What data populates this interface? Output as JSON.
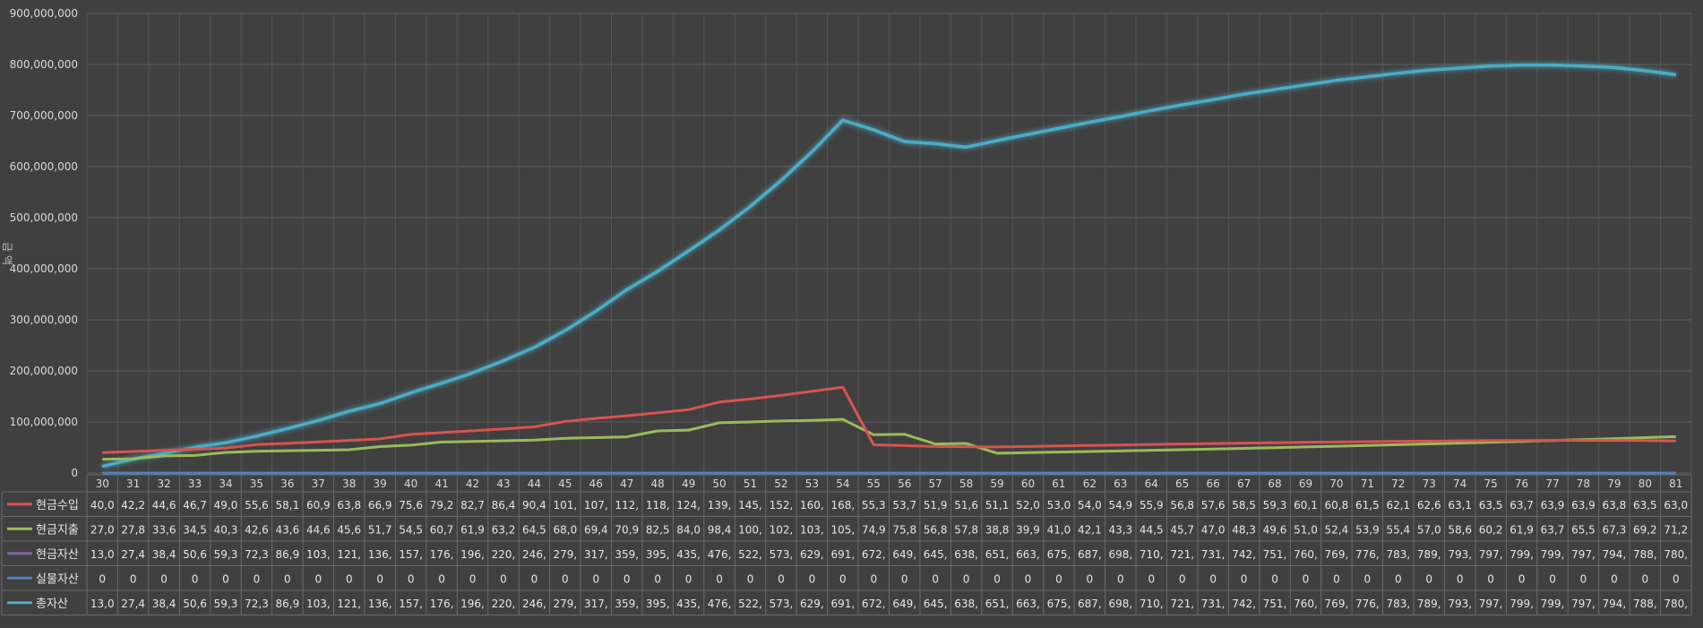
{
  "chart_data": {
    "type": "line",
    "title": "",
    "ylabel": "금 액",
    "ylim": [
      0,
      900000000
    ],
    "y_ticks": [
      "0",
      "100,000,000",
      "200,000,000",
      "300,000,000",
      "400,000,000",
      "500,000,000",
      "600,000,000",
      "700,000,000",
      "800,000,000",
      "900,000,000"
    ],
    "grid": true,
    "legend": "data table below chart",
    "categories": [
      "30",
      "31",
      "32",
      "33",
      "34",
      "35",
      "36",
      "37",
      "38",
      "39",
      "40",
      "41",
      "42",
      "43",
      "44",
      "45",
      "46",
      "47",
      "48",
      "49",
      "50",
      "51",
      "52",
      "53",
      "54",
      "55",
      "56",
      "57",
      "58",
      "59",
      "60",
      "61",
      "62",
      "63",
      "64",
      "65",
      "66",
      "67",
      "68",
      "69",
      "70",
      "71",
      "72",
      "73",
      "74",
      "75",
      "76",
      "77",
      "78",
      "79",
      "80",
      "81"
    ],
    "series": [
      {
        "name": "현금수입",
        "color": "#d9534f",
        "values": [
          40000000,
          42200000,
          44600000,
          46700000,
          49000000,
          55600000,
          58100000,
          60900000,
          63800000,
          66900000,
          75600000,
          79200000,
          82700000,
          86400000,
          90400000,
          101000000,
          107000000,
          112000000,
          118000000,
          124000000,
          139000000,
          145000000,
          152000000,
          160000000,
          168000000,
          55300000,
          53700000,
          51900000,
          51600000,
          51100000,
          52000000,
          53000000,
          54000000,
          54900000,
          55900000,
          56800000,
          57600000,
          58500000,
          59300000,
          60100000,
          60800000,
          61500000,
          62100000,
          62600000,
          63100000,
          63500000,
          63700000,
          63900000,
          63900000,
          63800000,
          63500000,
          63000000
        ],
        "labels": [
          "40,0",
          "42,2",
          "44,6",
          "46,7",
          "49,0",
          "55,6",
          "58,1",
          "60,9",
          "63,8",
          "66,9",
          "75,6",
          "79,2",
          "82,7",
          "86,4",
          "90,4",
          "101,",
          "107,",
          "112,",
          "118,",
          "124,",
          "139,",
          "145,",
          "152,",
          "160,",
          "168,",
          "55,3",
          "53,7",
          "51,9",
          "51,6",
          "51,1",
          "52,0",
          "53,0",
          "54,0",
          "54,9",
          "55,9",
          "56,8",
          "57,6",
          "58,5",
          "59,3",
          "60,1",
          "60,8",
          "61,5",
          "62,1",
          "62,6",
          "63,1",
          "63,5",
          "63,7",
          "63,9",
          "63,9",
          "63,8",
          "63,5",
          "63,0"
        ]
      },
      {
        "name": "현금지출",
        "color": "#9bbb59",
        "values": [
          27000000,
          27800000,
          33600000,
          34500000,
          40300000,
          42600000,
          43600000,
          44600000,
          45600000,
          51700000,
          54500000,
          60700000,
          61900000,
          63200000,
          64500000,
          68000000,
          69400000,
          70900000,
          82500000,
          84000000,
          98400000,
          100000000,
          102000000,
          103000000,
          105000000,
          74900000,
          75800000,
          56800000,
          57800000,
          38800000,
          39900000,
          41000000,
          42100000,
          43300000,
          44500000,
          45700000,
          47000000,
          48300000,
          49600000,
          51000000,
          52400000,
          53900000,
          55400000,
          57000000,
          58600000,
          60200000,
          61900000,
          63700000,
          65500000,
          67300000,
          69200000,
          71200000
        ],
        "labels": [
          "27,0",
          "27,8",
          "33,6",
          "34,5",
          "40,3",
          "42,6",
          "43,6",
          "44,6",
          "45,6",
          "51,7",
          "54,5",
          "60,7",
          "61,9",
          "63,2",
          "64,5",
          "68,0",
          "69,4",
          "70,9",
          "82,5",
          "84,0",
          "98,4",
          "100,",
          "102,",
          "103,",
          "105,",
          "74,9",
          "75,8",
          "56,8",
          "57,8",
          "38,8",
          "39,9",
          "41,0",
          "42,1",
          "43,3",
          "44,5",
          "45,7",
          "47,0",
          "48,3",
          "49,6",
          "51,0",
          "52,4",
          "53,9",
          "55,4",
          "57,0",
          "58,6",
          "60,2",
          "61,9",
          "63,7",
          "65,5",
          "67,3",
          "69,2",
          "71,2"
        ]
      },
      {
        "name": "현금자산",
        "color": "#8064a2",
        "values": [
          13000000,
          27400000,
          38400000,
          50600000,
          59300000,
          72300000,
          86900000,
          103000000,
          121000000,
          136000000,
          157000000,
          176000000,
          196000000,
          220000000,
          246000000,
          279000000,
          317000000,
          359000000,
          395000000,
          435000000,
          476000000,
          522000000,
          573000000,
          629000000,
          691000000,
          672000000,
          649000000,
          645000000,
          638000000,
          651000000,
          663000000,
          675000000,
          687000000,
          698000000,
          710000000,
          721000000,
          731000000,
          742000000,
          751000000,
          760000000,
          769000000,
          776000000,
          783000000,
          789000000,
          793000000,
          797000000,
          799000000,
          799000000,
          797000000,
          794000000,
          788000000,
          780000000
        ],
        "labels": [
          "13,0",
          "27,4",
          "38,4",
          "50,6",
          "59,3",
          "72,3",
          "86,9",
          "103,",
          "121,",
          "136,",
          "157,",
          "176,",
          "196,",
          "220,",
          "246,",
          "279,",
          "317,",
          "359,",
          "395,",
          "435,",
          "476,",
          "522,",
          "573,",
          "629,",
          "691,",
          "672,",
          "649,",
          "645,",
          "638,",
          "651,",
          "663,",
          "675,",
          "687,",
          "698,",
          "710,",
          "721,",
          "731,",
          "742,",
          "751,",
          "760,",
          "769,",
          "776,",
          "783,",
          "789,",
          "793,",
          "797,",
          "799,",
          "799,",
          "797,",
          "794,",
          "788,",
          "780,"
        ]
      },
      {
        "name": "실물자산",
        "color": "#4f81bd",
        "values": [
          0,
          0,
          0,
          0,
          0,
          0,
          0,
          0,
          0,
          0,
          0,
          0,
          0,
          0,
          0,
          0,
          0,
          0,
          0,
          0,
          0,
          0,
          0,
          0,
          0,
          0,
          0,
          0,
          0,
          0,
          0,
          0,
          0,
          0,
          0,
          0,
          0,
          0,
          0,
          0,
          0,
          0,
          0,
          0,
          0,
          0,
          0,
          0,
          0,
          0,
          0,
          0
        ],
        "labels": [
          "0",
          "0",
          "0",
          "0",
          "0",
          "0",
          "0",
          "0",
          "0",
          "0",
          "0",
          "0",
          "0",
          "0",
          "0",
          "0",
          "0",
          "0",
          "0",
          "0",
          "0",
          "0",
          "0",
          "0",
          "0",
          "0",
          "0",
          "0",
          "0",
          "0",
          "0",
          "0",
          "0",
          "0",
          "0",
          "0",
          "0",
          "0",
          "0",
          "0",
          "0",
          "0",
          "0",
          "0",
          "0",
          "0",
          "0",
          "0",
          "0",
          "0",
          "0",
          "0"
        ]
      },
      {
        "name": "총자산",
        "color": "#4bacc6",
        "values": [
          13000000,
          27400000,
          38400000,
          50600000,
          59300000,
          72300000,
          86900000,
          103000000,
          121000000,
          136000000,
          157000000,
          176000000,
          196000000,
          220000000,
          246000000,
          279000000,
          317000000,
          359000000,
          395000000,
          435000000,
          476000000,
          522000000,
          573000000,
          629000000,
          691000000,
          672000000,
          649000000,
          645000000,
          638000000,
          651000000,
          663000000,
          675000000,
          687000000,
          698000000,
          710000000,
          721000000,
          731000000,
          742000000,
          751000000,
          760000000,
          769000000,
          776000000,
          783000000,
          789000000,
          793000000,
          797000000,
          799000000,
          799000000,
          797000000,
          794000000,
          788000000,
          780000000
        ],
        "labels": [
          "13,0",
          "27,4",
          "38,4",
          "50,6",
          "59,3",
          "72,3",
          "86,9",
          "103,",
          "121,",
          "136,",
          "157,",
          "176,",
          "196,",
          "220,",
          "246,",
          "279,",
          "317,",
          "359,",
          "395,",
          "435,",
          "476,",
          "522,",
          "573,",
          "629,",
          "691,",
          "672,",
          "649,",
          "645,",
          "638,",
          "651,",
          "663,",
          "675,",
          "687,",
          "698,",
          "710,",
          "721,",
          "731,",
          "742,",
          "751,",
          "760,",
          "769,",
          "776,",
          "783,",
          "789,",
          "793,",
          "797,",
          "799,",
          "799,",
          "797,",
          "794,",
          "788,",
          "780,"
        ]
      }
    ]
  }
}
